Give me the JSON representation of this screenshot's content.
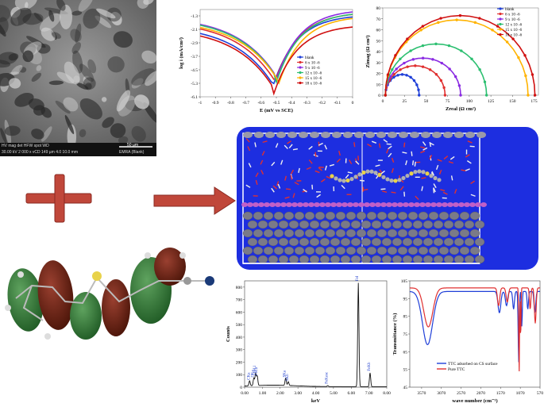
{
  "sem": {
    "scalebar_text": "50 µm",
    "footer_row1": [
      "HV",
      "mag",
      "det",
      "HFW",
      "spot",
      "WD"
    ],
    "footer_row2": "30.00 kV  2 000 x  vCD  149 µm  4.0  10.0 mm",
    "footer_right": "EMRA (Blank)"
  },
  "colors": {
    "blank": "#1f3fd8",
    "c6": "#e03030",
    "c9": "#8a2be2",
    "c12": "#2cbf70",
    "c15": "#ffb300",
    "c18": "#d01010",
    "arrow": "#c0473a",
    "plus": "#c0473a",
    "box_blue": "#1d2ee0"
  },
  "tafel": {
    "xlabel": "E (mV vs SCE)",
    "ylabel": "log i (mA/cm²)",
    "xticks": [
      "-1",
      "-0.9",
      "-0.8",
      "-0.7",
      "-0.6",
      "-0.5",
      "-0.4",
      "-0.3",
      "-0.2",
      "-0.1",
      "0"
    ],
    "yticks": [
      "-1.3",
      "-2.1",
      "-2.9",
      "-3.7",
      "-4.5",
      "-5.3",
      "-6.1"
    ],
    "legend": [
      "blank",
      "6 x 10 -6",
      "9 x 10 -6",
      "12 x 10 -6",
      "15 x 10 -6",
      "18 x 10 -6"
    ]
  },
  "nyquist": {
    "xlabel": "Zreal (Ω cm²)",
    "ylabel": "Zimag (Ω cm²)",
    "xticks": [
      "0",
      "25",
      "50",
      "75",
      "100",
      "125",
      "150",
      "175"
    ],
    "yticks": [
      "0",
      "10",
      "20",
      "30",
      "40",
      "50",
      "60",
      "70",
      "80"
    ],
    "legend": [
      "blank",
      "6 x 10 -6",
      "9 x 10 -6",
      "12 x 10 -6",
      "15 x 10 -6",
      "18 x 10 -6"
    ]
  },
  "chart_data": [
    {
      "type": "line",
      "title": "",
      "xlabel": "E (mV vs SCE)",
      "ylabel": "log i (mA/cm²)",
      "xlim": [
        -1,
        0
      ],
      "ylim": [
        -6.1,
        -0.9
      ],
      "series": [
        {
          "name": "blank",
          "corrosion_potential": -0.52,
          "min_log_i": -5.4
        },
        {
          "name": "6 x 10 -6",
          "corrosion_potential": -0.51,
          "min_log_i": -5.2
        },
        {
          "name": "9 x 10 -6",
          "corrosion_potential": -0.5,
          "min_log_i": -5.0
        },
        {
          "name": "12 x 10 -6",
          "corrosion_potential": -0.5,
          "min_log_i": -5.1
        },
        {
          "name": "15 x 10 -6",
          "corrosion_potential": -0.49,
          "min_log_i": -5.3
        },
        {
          "name": "18 x 10 -6",
          "corrosion_potential": -0.52,
          "min_log_i": -5.8
        }
      ]
    },
    {
      "type": "scatter",
      "title": "",
      "xlabel": "Zreal (Ω cm²)",
      "ylabel": "Zimag (Ω cm²)",
      "xlim": [
        0,
        180
      ],
      "ylim": [
        0,
        80
      ],
      "series": [
        {
          "name": "blank",
          "x_start": 3,
          "x_end": 42,
          "peak_y": 19
        },
        {
          "name": "6 x 10 -6",
          "x_start": 3,
          "x_end": 72,
          "peak_y": 27
        },
        {
          "name": "9 x 10 -6",
          "x_start": 3,
          "x_end": 90,
          "peak_y": 34
        },
        {
          "name": "12 x 10 -6",
          "x_start": 3,
          "x_end": 120,
          "peak_y": 47
        },
        {
          "name": "15 x 10 -6",
          "x_start": 3,
          "x_end": 168,
          "peak_y": 69
        },
        {
          "name": "18 x 10 -6",
          "x_start": 3,
          "x_end": 176,
          "peak_y": 73
        }
      ]
    },
    {
      "type": "line",
      "title": "",
      "xlabel": "keV",
      "ylabel": "Counts",
      "xlim": [
        0,
        8
      ],
      "ylim": [
        0,
        850
      ],
      "x_ticks": [
        "0.00",
        "1.00",
        "2.00",
        "3.00",
        "4.00",
        "5.00",
        "6.00",
        "7.00",
        "8.00"
      ],
      "y_ticks": [
        "0",
        "100",
        "200",
        "300",
        "400",
        "500",
        "600",
        "700",
        "800"
      ],
      "peaks": [
        {
          "label": "CKa",
          "x": 0.28,
          "y": 40
        },
        {
          "label": "OKa",
          "x": 0.52,
          "y": 60
        },
        {
          "label": "FeLl",
          "x": 0.62,
          "y": 95
        },
        {
          "label": "FeLa",
          "x": 0.71,
          "y": 75
        },
        {
          "label": "SKa",
          "x": 2.31,
          "y": 60
        },
        {
          "label": "SKb",
          "x": 2.46,
          "y": 30
        },
        {
          "label": "FeKesc",
          "x": 4.68,
          "y": 8
        },
        {
          "label": "FeKa",
          "x": 6.4,
          "y": 830
        },
        {
          "label": "FeKb",
          "x": 7.06,
          "y": 110
        }
      ]
    },
    {
      "type": "line",
      "title": "",
      "xlabel": "wave number (cm⁻¹)",
      "ylabel": "Transmittance (%)",
      "xlim": [
        3870,
        570
      ],
      "ylim": [
        45,
        105
      ],
      "x_ticks": [
        "3570",
        "3070",
        "2570",
        "2070",
        "1570",
        "1070",
        "570"
      ],
      "y_ticks": [
        "45",
        "55",
        "65",
        "75",
        "85",
        "95",
        "105"
      ],
      "series": [
        {
          "name": "TTC adsorbed on CS surface",
          "color": "#1f3fd8"
        },
        {
          "name": "Pure TTC",
          "color": "#e03030"
        }
      ]
    }
  ],
  "eds": {
    "xlabel": "keV",
    "ylabel": "Counts",
    "xticks": [
      "0.00",
      "1.00",
      "2.00",
      "3.00",
      "4.00",
      "5.00",
      "6.00",
      "7.00",
      "8.00"
    ],
    "yticks": [
      "0",
      "100",
      "200",
      "300",
      "400",
      "500",
      "600",
      "700",
      "800"
    ]
  },
  "ftir": {
    "xlabel": "wave number (cm⁻¹)",
    "ylabel": "Transmittance (%)",
    "xticks": [
      "3570",
      "3070",
      "2570",
      "2070",
      "1570",
      "1070",
      "570"
    ],
    "yticks": [
      "45",
      "55",
      "65",
      "75",
      "85",
      "95",
      "105"
    ],
    "legend": [
      "TTC adsorbed on CS surface",
      "Pure TTC"
    ]
  }
}
